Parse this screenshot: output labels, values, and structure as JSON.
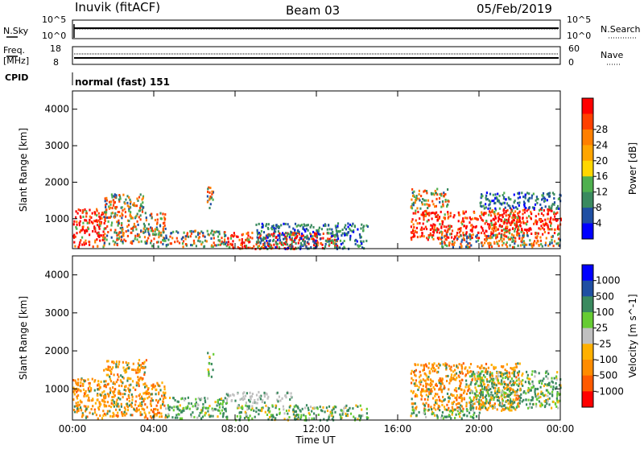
{
  "header": {
    "station": "Inuvik (fitACF)",
    "beam": "Beam 03",
    "date": "05/Feb/2019"
  },
  "top_panels": {
    "nsky_label": "N.Sky",
    "nsearch_label": "N.Search",
    "freq_label_1": "Freq.",
    "freq_label_2": "[MHz]",
    "nave_label": "Nave",
    "cpid_label": "CPID",
    "cpid_text": "normal (fast) 151",
    "nsky_ticks": [
      "10^5",
      "10^0"
    ],
    "nsearch_ticks": [
      "10^5",
      "10^0"
    ],
    "freq_ticks": [
      "18",
      "8"
    ],
    "nave_ticks": [
      "60",
      "0"
    ]
  },
  "colors": {
    "power": [
      "#0000ff",
      "#1f4fa3",
      "#3a8a5f",
      "#4fb04f",
      "#ffd700",
      "#ffa500",
      "#ff7f00",
      "#ff4000",
      "#ff0000"
    ],
    "velocity": [
      "#ff0000",
      "#ff5a00",
      "#ff8c00",
      "#ffb000",
      "#c0c0c0",
      "#66cc33",
      "#3a8a5f",
      "#1f4fa3",
      "#0000ff"
    ]
  },
  "chart_data": [
    {
      "type": "heatmap",
      "title": "Power",
      "ylabel": "Slant Range [km]",
      "xlabel": "Time UT",
      "x_ticks": [
        "00:00",
        "04:00",
        "08:00",
        "12:00",
        "16:00",
        "20:00",
        "00:00"
      ],
      "xlim": [
        0,
        24
      ],
      "ylim": [
        180,
        4500
      ],
      "y_ticks": [
        1000,
        2000,
        3000,
        4000
      ],
      "colorbar_label": "Power [dB]",
      "colorbar_ticks": [
        4,
        8,
        12,
        16,
        20,
        24,
        28
      ],
      "regions": [
        {
          "x": [
            0.0,
            1.6
          ],
          "y": [
            250,
            1300
          ],
          "level": "high"
        },
        {
          "x": [
            1.5,
            3.5
          ],
          "y": [
            300,
            1700
          ],
          "level": "mixed"
        },
        {
          "x": [
            3.5,
            4.6
          ],
          "y": [
            250,
            1200
          ],
          "level": "mixed"
        },
        {
          "x": [
            4.3,
            7.6
          ],
          "y": [
            250,
            700
          ],
          "level": "mixed"
        },
        {
          "x": [
            6.6,
            6.9
          ],
          "y": [
            1300,
            2000
          ],
          "level": "mixed"
        },
        {
          "x": [
            7.6,
            13.0
          ],
          "y": [
            200,
            650
          ],
          "level": "high"
        },
        {
          "x": [
            9.0,
            14.5
          ],
          "y": [
            200,
            900
          ],
          "level": "low"
        },
        {
          "x": [
            16.6,
            22.0
          ],
          "y": [
            450,
            1250
          ],
          "level": "high"
        },
        {
          "x": [
            16.6,
            18.5
          ],
          "y": [
            1300,
            1850
          ],
          "level": "mixed"
        },
        {
          "x": [
            20.5,
            24.0
          ],
          "y": [
            600,
            1300
          ],
          "level": "high"
        },
        {
          "x": [
            18.0,
            24.0
          ],
          "y": [
            250,
            600
          ],
          "level": "mixed"
        },
        {
          "x": [
            20.0,
            24.0
          ],
          "y": [
            1300,
            1750
          ],
          "level": "low"
        }
      ]
    },
    {
      "type": "heatmap",
      "title": "Velocity",
      "ylabel": "Slant Range [km]",
      "xlabel": "Time UT",
      "x_ticks": [
        "00:00",
        "04:00",
        "08:00",
        "12:00",
        "16:00",
        "20:00",
        "00:00"
      ],
      "xlim": [
        0,
        24
      ],
      "ylim": [
        180,
        4500
      ],
      "y_ticks": [
        1000,
        2000,
        3000,
        4000
      ],
      "colorbar_label": "Velocity [m s^-1]",
      "colorbar_ticks": [
        1000,
        500,
        100,
        25,
        -25,
        -100,
        -500,
        -1000
      ],
      "regions": [
        {
          "x": [
            0.0,
            1.6
          ],
          "y": [
            250,
            1300
          ],
          "level": "neg"
        },
        {
          "x": [
            1.5,
            3.6
          ],
          "y": [
            300,
            1800
          ],
          "level": "neg"
        },
        {
          "x": [
            3.5,
            4.6
          ],
          "y": [
            250,
            1200
          ],
          "level": "neg"
        },
        {
          "x": [
            4.5,
            7.6
          ],
          "y": [
            250,
            800
          ],
          "level": "pos"
        },
        {
          "x": [
            6.6,
            6.9
          ],
          "y": [
            1300,
            2000
          ],
          "level": "pos"
        },
        {
          "x": [
            7.5,
            9.6
          ],
          "y": [
            650,
            950
          ],
          "level": "zero"
        },
        {
          "x": [
            10.0,
            10.8
          ],
          "y": [
            700,
            950
          ],
          "level": "zero"
        },
        {
          "x": [
            8.0,
            14.5
          ],
          "y": [
            200,
            600
          ],
          "level": "pos"
        },
        {
          "x": [
            16.6,
            22.0
          ],
          "y": [
            450,
            1700
          ],
          "level": "neg"
        },
        {
          "x": [
            19.5,
            24.0
          ],
          "y": [
            500,
            1500
          ],
          "level": "pos"
        },
        {
          "x": [
            16.6,
            20.0
          ],
          "y": [
            250,
            500
          ],
          "level": "pos"
        }
      ]
    }
  ]
}
